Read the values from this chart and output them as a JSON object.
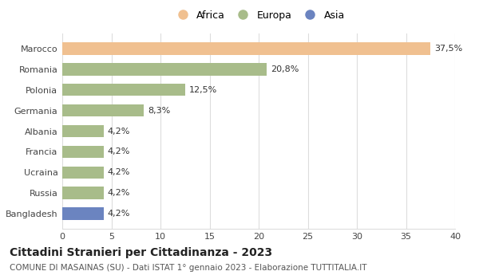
{
  "categories": [
    "Bangladesh",
    "Russia",
    "Ucraina",
    "Francia",
    "Albania",
    "Germania",
    "Polonia",
    "Romania",
    "Marocco"
  ],
  "values": [
    4.2,
    4.2,
    4.2,
    4.2,
    4.2,
    8.3,
    12.5,
    20.8,
    37.5
  ],
  "labels": [
    "4,2%",
    "4,2%",
    "4,2%",
    "4,2%",
    "4,2%",
    "8,3%",
    "12,5%",
    "20,8%",
    "37,5%"
  ],
  "colors": [
    "#6b84c0",
    "#a8bc8a",
    "#a8bc8a",
    "#a8bc8a",
    "#a8bc8a",
    "#a8bc8a",
    "#a8bc8a",
    "#a8bc8a",
    "#f0c090"
  ],
  "legend_labels": [
    "Africa",
    "Europa",
    "Asia"
  ],
  "legend_colors": [
    "#f0c090",
    "#a8bc8a",
    "#6b84c0"
  ],
  "xlim": [
    0,
    40
  ],
  "xticks": [
    0,
    5,
    10,
    15,
    20,
    25,
    30,
    35,
    40
  ],
  "title": "Cittadini Stranieri per Cittadinanza - 2023",
  "subtitle": "COMUNE DI MASAINAS (SU) - Dati ISTAT 1° gennaio 2023 - Elaborazione TUTTITALIA.IT",
  "background_color": "#ffffff",
  "grid_color": "#dddddd",
  "bar_height": 0.6,
  "label_fontsize": 8,
  "title_fontsize": 10,
  "subtitle_fontsize": 7.5,
  "ytick_fontsize": 8,
  "xtick_fontsize": 8,
  "legend_fontsize": 9
}
